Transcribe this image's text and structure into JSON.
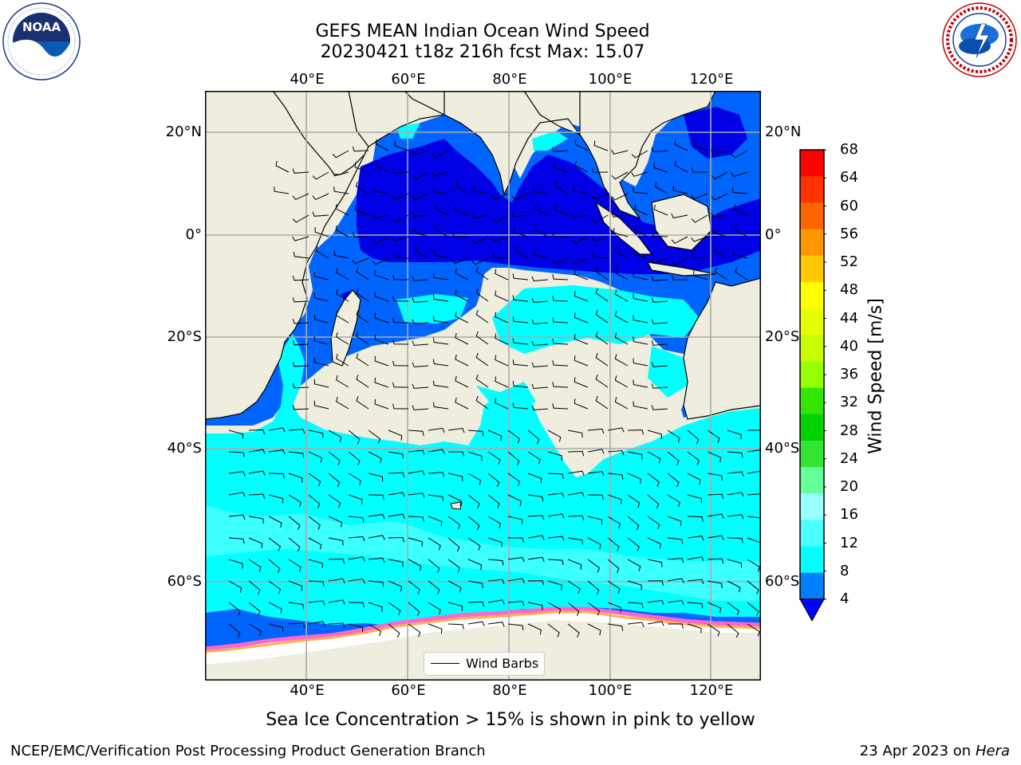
{
  "header": {
    "title_line1": "GEFS MEAN Indian Ocean Wind Speed",
    "title_line2": "20230421 t18z 216h fcst   Max: 15.07"
  },
  "logos": {
    "left": {
      "name": "noaa-logo",
      "text": "NOAA",
      "ring_text": "NATIONAL OCEANIC AND ATMOSPHERIC ADMINISTRATION · U.S. DEPARTMENT OF COMMERCE"
    },
    "right": {
      "name": "nws-logo",
      "ring_text": "NATIONAL WEATHER SERVICE"
    }
  },
  "map": {
    "lon_ticks": [
      "40°E",
      "60°E",
      "80°E",
      "100°E",
      "120°E"
    ],
    "lat_ticks_left": [
      "20°N",
      "0°",
      "20°S",
      "40°S",
      "60°S"
    ],
    "lat_ticks_right": [
      "20°N",
      "0°",
      "20°S",
      "40°S",
      "60°S"
    ],
    "lon_range": [
      20,
      130
    ],
    "lat_range": [
      -72,
      29
    ],
    "colors": {
      "land": "#eeedde",
      "ocean_4_8": "#0064ff",
      "ocean_0_4": "#0000e6",
      "ocean_8_12": "#00ffff",
      "ocean_12_16": "#3cffff",
      "ice": "#ff66cc"
    }
  },
  "colorbar": {
    "label": "Wind Speed [m/s]",
    "ticks": [
      "68",
      "64",
      "60",
      "56",
      "52",
      "48",
      "44",
      "40",
      "36",
      "32",
      "28",
      "24",
      "20",
      "16",
      "12",
      "8",
      "4"
    ],
    "colors": [
      "#ff0000",
      "#ff3200",
      "#ff6400",
      "#ff9600",
      "#ffc800",
      "#ffff00",
      "#e6ff00",
      "#c8ff00",
      "#96ff00",
      "#32e600",
      "#00d200",
      "#33e633",
      "#66ff99",
      "#99ffff",
      "#4cffff",
      "#00ffff",
      "#0080ff"
    ],
    "under_color": "#0000ff"
  },
  "legend": {
    "label": "Wind Barbs"
  },
  "caption": "Sea Ice Concentration > 15% is shown in pink to yellow",
  "footer": {
    "credit": "NCEP/EMC/Verification Post Processing Product Generation Branch",
    "date": "23 Apr 2023 on",
    "host": "Hera"
  }
}
